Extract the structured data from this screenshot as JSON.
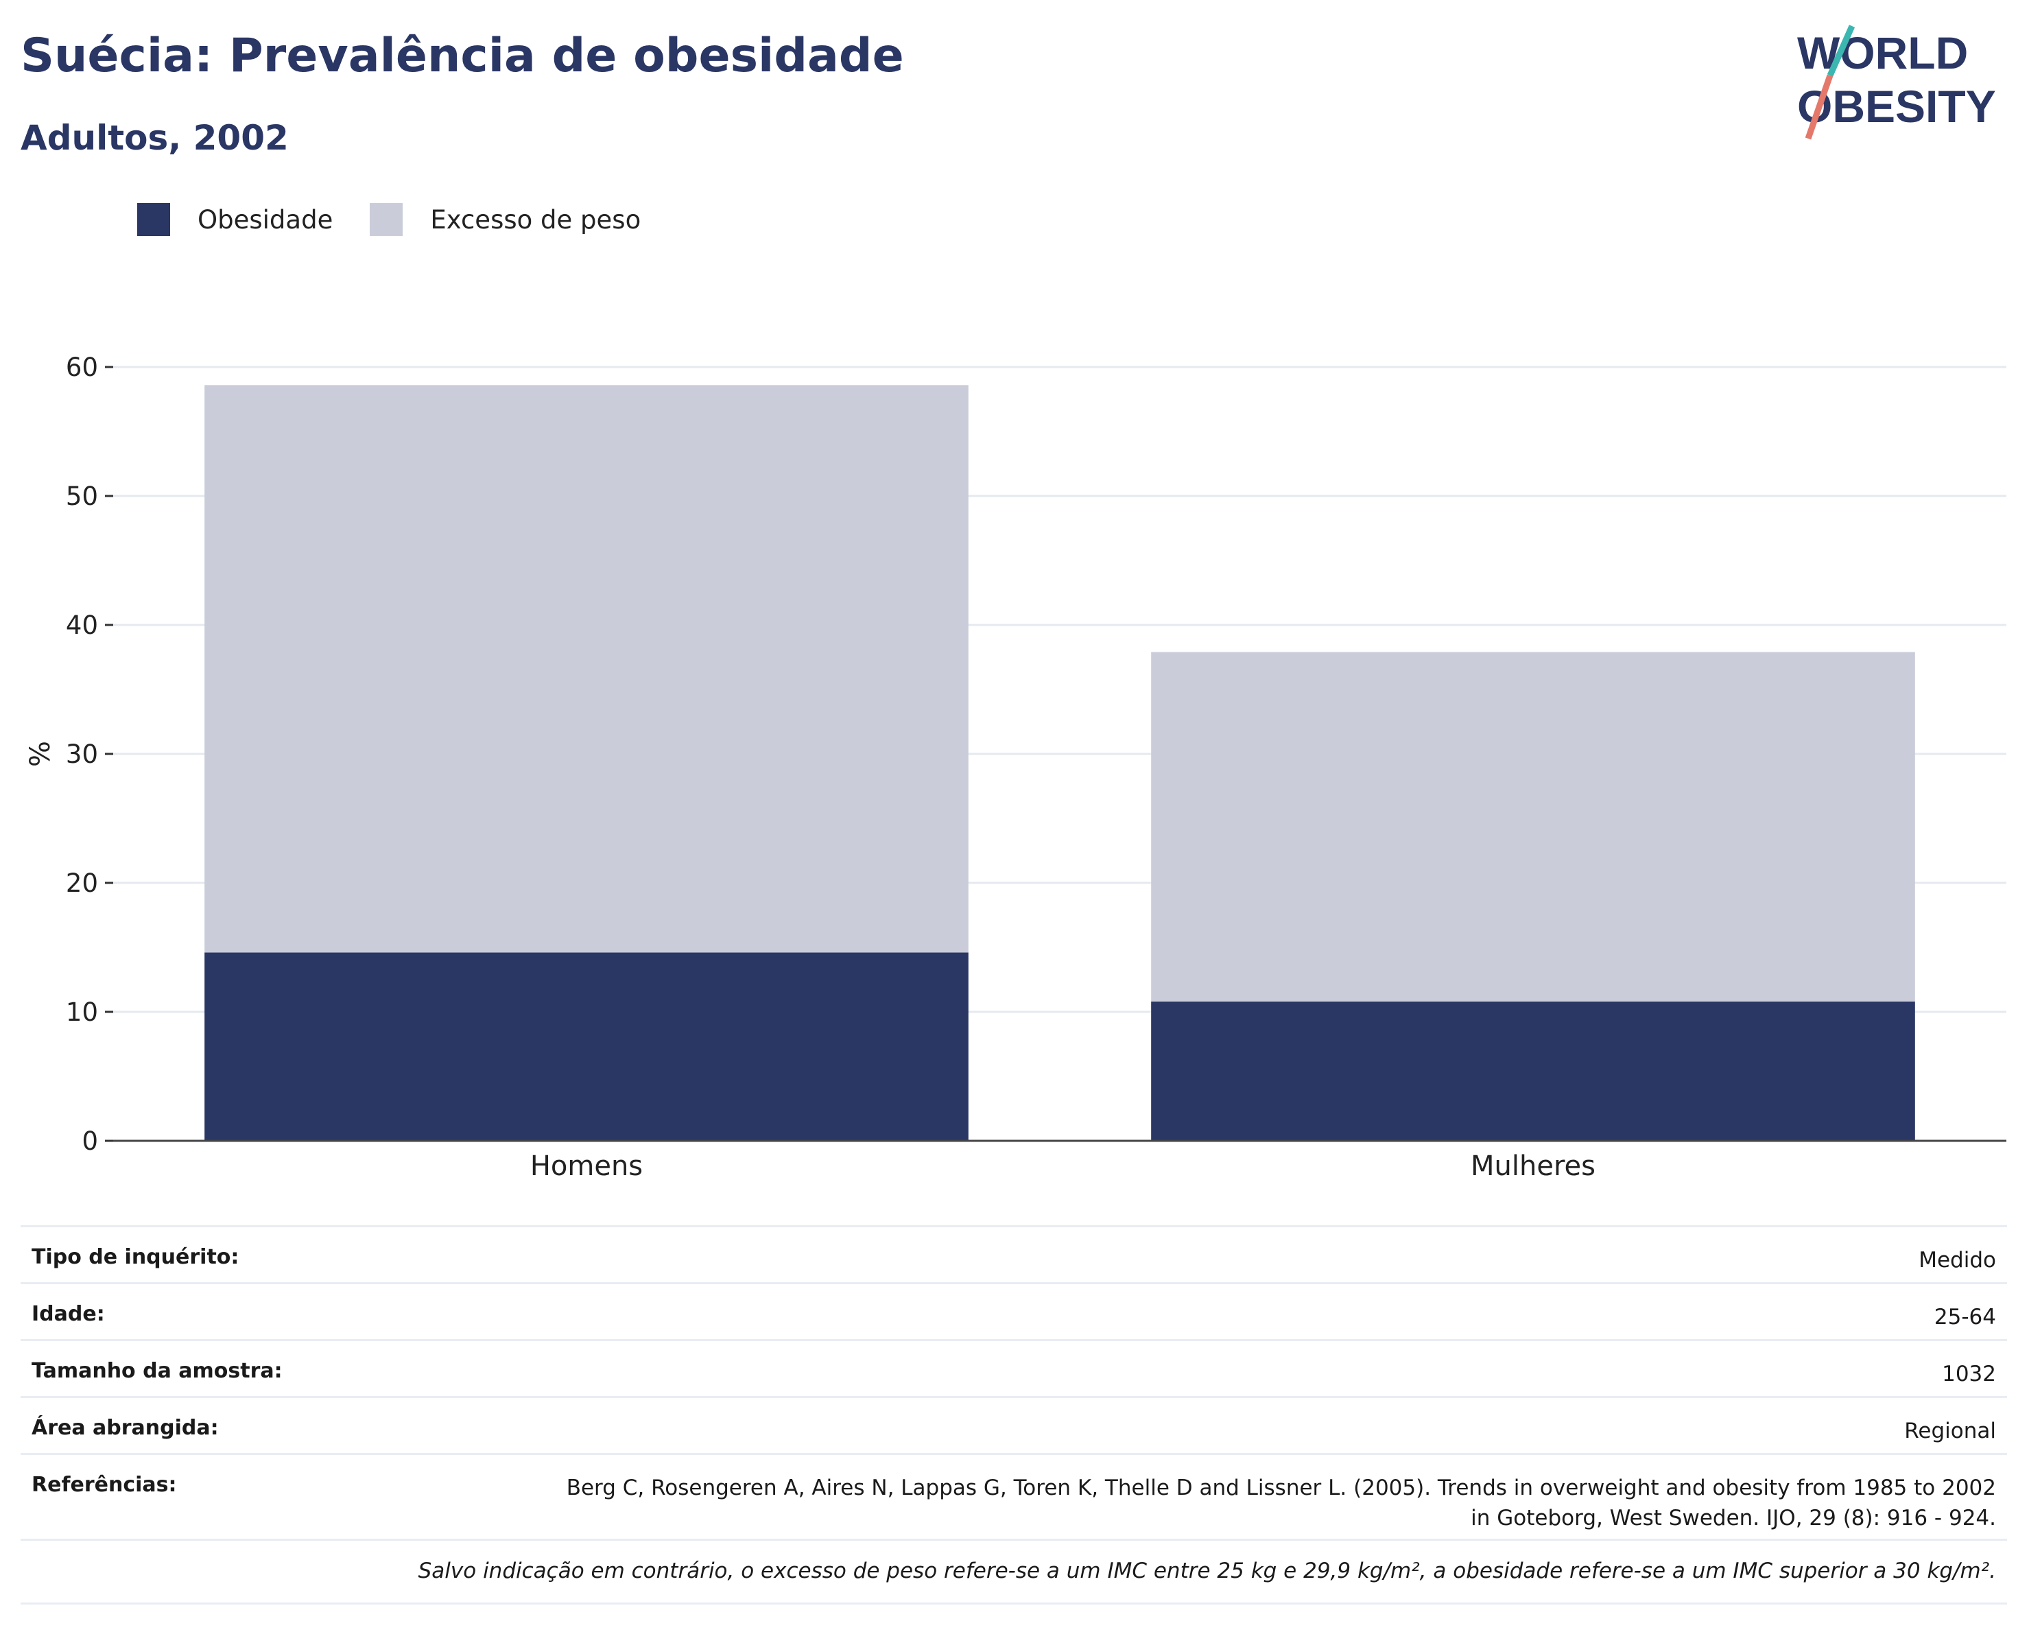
{
  "header": {
    "title": "Suécia: Prevalência de obesidade",
    "subtitle": "Adultos, 2002"
  },
  "logo": {
    "line1": "WORLD",
    "line2": "OBESITY"
  },
  "colors": {
    "obesity": "#2a3664",
    "overweight": "#cacdd9",
    "accent_teal": "#3bb6b0",
    "accent_coral": "#e4786b"
  },
  "legend": {
    "items": [
      "Obesidade",
      "Excesso de peso"
    ]
  },
  "chart_data": {
    "type": "bar",
    "stacked": true,
    "categories": [
      "Homens",
      "Mulheres"
    ],
    "series": [
      {
        "name": "Obesidade",
        "values": [
          14.6,
          10.8
        ]
      },
      {
        "name": "Excesso de peso",
        "values": [
          44.0,
          27.1
        ]
      }
    ],
    "ylabel": "%",
    "ylim": [
      0,
      60
    ],
    "yticks": [
      0,
      10,
      20,
      30,
      40,
      50,
      60
    ],
    "grid": true,
    "legend_position": "top-left"
  },
  "info": {
    "rows": [
      {
        "label": "Tipo de inquérito:",
        "value": "Medido"
      },
      {
        "label": "Idade:",
        "value": "25-64"
      },
      {
        "label": "Tamanho da amostra:",
        "value": "1032"
      },
      {
        "label": "Área abrangida:",
        "value": "Regional"
      }
    ],
    "references": {
      "label": "Referências:",
      "line1": "Berg C, Rosengeren A, Aires N, Lappas G, Toren K, Thelle D and Lissner L. (2005). Trends in overweight and obesity from 1985 to 2002",
      "line2": "in Goteborg, West Sweden. IJO, 29 (8): 916 - 924."
    },
    "note": "Salvo indicação em contrário, o excesso de peso refere-se a um IMC entre 25 kg e 29,9 kg/m², a obesidade refere-se a um IMC superior a 30 kg/m²."
  }
}
